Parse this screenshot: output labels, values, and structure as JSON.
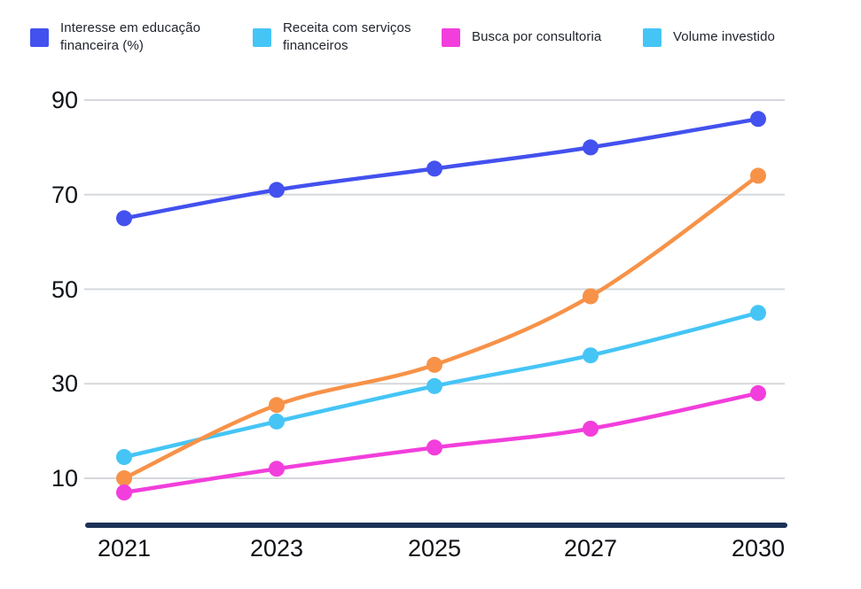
{
  "legend": {
    "items": [
      {
        "label": "Interesse em educação financeira (%)",
        "swatch_color": "#4351EE"
      },
      {
        "label": "Receita com serviços financeiros",
        "swatch_color": "#45C5F6"
      },
      {
        "label": "Busca por consultoria",
        "swatch_color": "#F23EDC"
      },
      {
        "label": "Volume investido",
        "swatch_color": "#45C5F6"
      }
    ]
  },
  "chart_data": {
    "type": "line",
    "categories": [
      "2021",
      "2023",
      "2025",
      "2027",
      "2030"
    ],
    "series": [
      {
        "name": "Interesse em educação financeira (%)",
        "color": "#4351EE",
        "values": [
          65,
          71,
          75.5,
          80,
          86
        ]
      },
      {
        "name": "Receita com serviços financeiros",
        "color": "#45C5F6",
        "values": [
          14.5,
          22,
          29.5,
          36,
          45
        ]
      },
      {
        "name": "Busca por consultoria",
        "color": "#F23EDC",
        "values": [
          7,
          12,
          16.5,
          20.5,
          28
        ]
      },
      {
        "name": "Volume investido",
        "color": "#F79248",
        "values": [
          10,
          25.5,
          34,
          48.5,
          74
        ]
      }
    ],
    "y_ticks": [
      90,
      70,
      50,
      30,
      10
    ],
    "ylim": [
      2,
      92
    ],
    "grid": "horizontal",
    "legend_position": "top",
    "marker": "circle",
    "note": "Legend swatch for 'Volume investido' is cyan although its plotted line is orange"
  },
  "colors": {
    "background": "#FFFFFF",
    "gridline": "#D5D8DC",
    "x_axis_line": "#1C3156",
    "axis_label_text": "#0E1116",
    "legend_text": "#1F232B"
  }
}
